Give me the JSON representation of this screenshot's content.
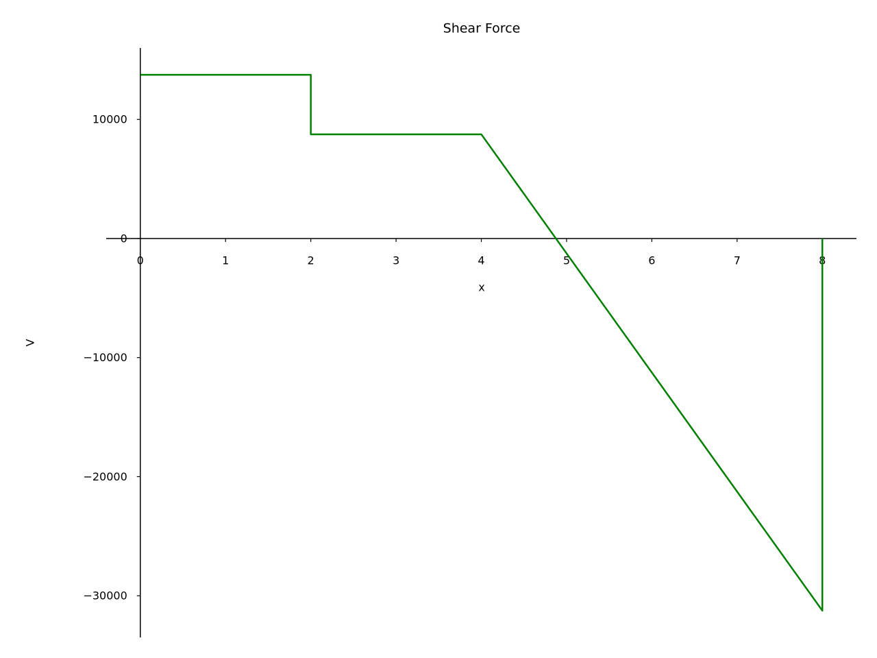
{
  "chart_data": {
    "type": "line",
    "title": "Shear Force",
    "x_label": "x",
    "y_label": "V",
    "x": [
      0,
      2,
      2,
      4,
      8,
      8
    ],
    "series": [
      {
        "color": "#008000",
        "values": [
          13750,
          13750,
          8750,
          8750,
          -31250,
          0
        ]
      }
    ],
    "xlim": [
      -0.4,
      8.4
    ],
    "ylim": [
      -33500,
      16000
    ],
    "xticks": [
      0,
      1,
      2,
      3,
      4,
      5,
      6,
      7,
      8
    ],
    "yticks": [
      {
        "value": -30000,
        "label": "−30000"
      },
      {
        "value": -20000,
        "label": "−20000"
      },
      {
        "value": -10000,
        "label": "−10000"
      },
      0,
      10000
    ]
  }
}
